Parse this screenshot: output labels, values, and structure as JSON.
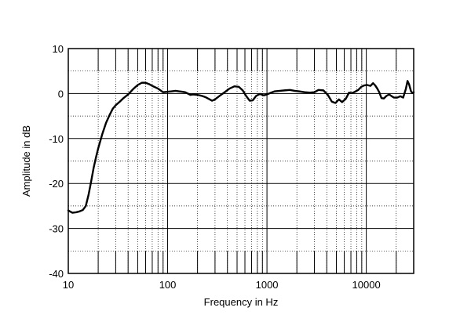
{
  "chart_data": {
    "type": "line",
    "xscale": "log",
    "xlim": [
      10,
      30000
    ],
    "ylim": [
      -40,
      10
    ],
    "xlabel": "Frequency in Hz",
    "ylabel": "Amplitude in dB",
    "x_ticks": [
      10,
      100,
      1000,
      10000
    ],
    "x_tick_labels": [
      "10",
      "100",
      "1000",
      "10000"
    ],
    "y_ticks": [
      10,
      0,
      -10,
      -20,
      -30,
      -40
    ],
    "y_tick_labels": [
      "10",
      "0",
      "-10",
      "-20",
      "-30",
      "-40"
    ],
    "grid": {
      "major": "solid",
      "minor": "dotted"
    },
    "series": [
      {
        "color": "#000000",
        "points": [
          [
            10,
            -26.0
          ],
          [
            11,
            -26.5
          ],
          [
            12,
            -26.4
          ],
          [
            13,
            -26.2
          ],
          [
            14,
            -25.9
          ],
          [
            15,
            -25.0
          ],
          [
            16,
            -22.5
          ],
          [
            17,
            -19.5
          ],
          [
            18,
            -16.5
          ],
          [
            19,
            -14.2
          ],
          [
            20,
            -12.2
          ],
          [
            22,
            -9.0
          ],
          [
            24,
            -6.5
          ],
          [
            26,
            -4.8
          ],
          [
            28,
            -3.4
          ],
          [
            30,
            -2.6
          ],
          [
            33,
            -1.8
          ],
          [
            36,
            -1.0
          ],
          [
            40,
            -0.2
          ],
          [
            45,
            1.0
          ],
          [
            50,
            1.9
          ],
          [
            55,
            2.4
          ],
          [
            60,
            2.4
          ],
          [
            65,
            2.1
          ],
          [
            70,
            1.7
          ],
          [
            80,
            1.1
          ],
          [
            90,
            0.3
          ],
          [
            100,
            0.4
          ],
          [
            110,
            0.5
          ],
          [
            120,
            0.6
          ],
          [
            130,
            0.5
          ],
          [
            140,
            0.4
          ],
          [
            150,
            0.3
          ],
          [
            170,
            -0.3
          ],
          [
            180,
            -0.2
          ],
          [
            200,
            -0.3
          ],
          [
            220,
            -0.5
          ],
          [
            240,
            -0.8
          ],
          [
            260,
            -1.2
          ],
          [
            280,
            -1.6
          ],
          [
            300,
            -1.3
          ],
          [
            330,
            -0.6
          ],
          [
            370,
            0.2
          ],
          [
            420,
            1.1
          ],
          [
            470,
            1.6
          ],
          [
            520,
            1.5
          ],
          [
            570,
            0.7
          ],
          [
            620,
            -0.6
          ],
          [
            670,
            -1.6
          ],
          [
            720,
            -1.5
          ],
          [
            780,
            -0.5
          ],
          [
            850,
            -0.1
          ],
          [
            930,
            -0.4
          ],
          [
            1000,
            -0.2
          ],
          [
            1100,
            0.2
          ],
          [
            1200,
            0.5
          ],
          [
            1350,
            0.6
          ],
          [
            1500,
            0.7
          ],
          [
            1700,
            0.8
          ],
          [
            1900,
            0.6
          ],
          [
            2100,
            0.5
          ],
          [
            2400,
            0.3
          ],
          [
            2700,
            0.2
          ],
          [
            3000,
            0.3
          ],
          [
            3300,
            0.8
          ],
          [
            3700,
            0.7
          ],
          [
            4100,
            -0.3
          ],
          [
            4500,
            -1.8
          ],
          [
            4900,
            -2.1
          ],
          [
            5300,
            -1.3
          ],
          [
            5700,
            -1.9
          ],
          [
            6200,
            -1.2
          ],
          [
            6700,
            0.2
          ],
          [
            7200,
            0.1
          ],
          [
            7700,
            0.4
          ],
          [
            8300,
            0.8
          ],
          [
            8900,
            1.5
          ],
          [
            9500,
            1.8
          ],
          [
            10200,
            1.9
          ],
          [
            11000,
            1.7
          ],
          [
            11700,
            2.3
          ],
          [
            12300,
            1.8
          ],
          [
            12900,
            1.1
          ],
          [
            13500,
            0.3
          ],
          [
            14200,
            -1.0
          ],
          [
            15000,
            -1.1
          ],
          [
            16000,
            -0.5
          ],
          [
            17000,
            -0.2
          ],
          [
            18000,
            -0.6
          ],
          [
            19000,
            -0.9
          ],
          [
            20500,
            -0.9
          ],
          [
            22000,
            -0.6
          ],
          [
            23500,
            -0.9
          ],
          [
            25000,
            1.0
          ],
          [
            26000,
            2.8
          ],
          [
            27000,
            2.0
          ],
          [
            28200,
            0.5
          ],
          [
            29200,
            0.1
          ],
          [
            30000,
            0.3
          ]
        ]
      }
    ]
  }
}
